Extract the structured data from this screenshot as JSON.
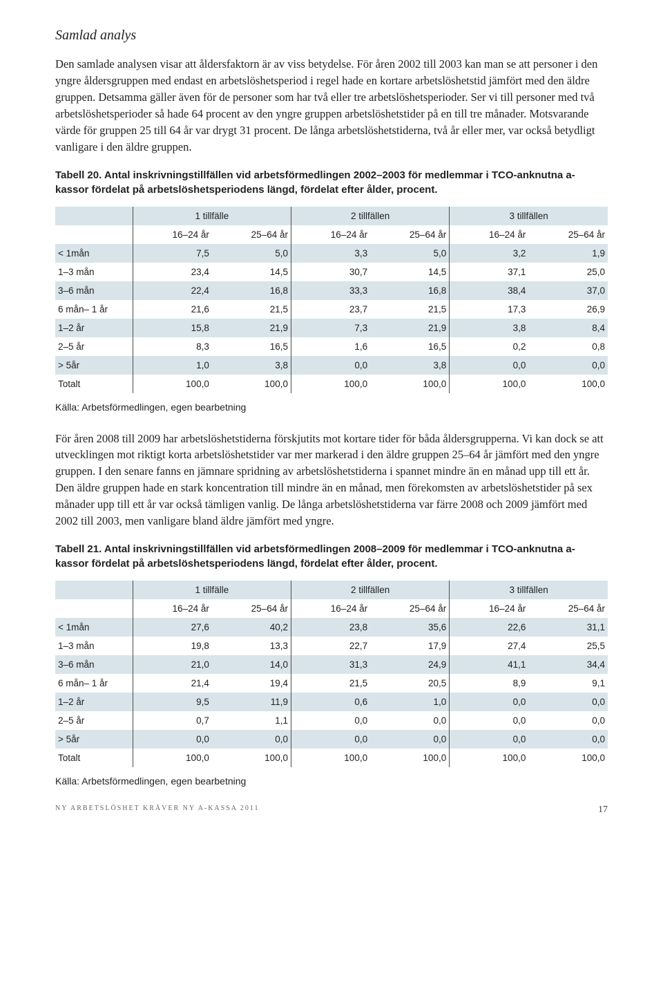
{
  "heading": "Samlad analys",
  "para1": "Den samlade analysen visar att åldersfaktorn är av viss betydelse. För åren 2002 till 2003 kan man se att personer i den yngre åldersgruppen med endast en arbetslöshetsperiod i regel hade en kortare arbetslöshetstid jämfört med den äldre gruppen. Detsamma gäller även för de personer som har två eller tre arbetslöshetsperioder. Ser vi till personer med två arbetslöshetsperioder så hade 64 procent av den yngre gruppen arbetslöshetstider på en till tre månader. Motsvarande värde för gruppen 25 till 64 år var drygt 31 procent. De långa arbetslöshetstiderna, två år eller mer, var också betydligt vanligare i den äldre gruppen.",
  "table20_caption": "Tabell 20. Antal inskrivningstillfällen vid arbetsförmedlingen 2002–2003 för medlemmar i TCO-anknutna a-kassor fördelat på arbetslöshetsperiodens längd, fördelat efter ålder, procent.",
  "group_headers": [
    "1 tillfälle",
    "2 tillfällen",
    "3 tillfällen"
  ],
  "sub_headers": [
    "16–24 år",
    "25–64 år",
    "16–24 år",
    "25–64 år",
    "16–24 år",
    "25–64 år"
  ],
  "table20_rows": [
    {
      "label": "< 1mån",
      "vals": [
        "7,5",
        "5,0",
        "3,3",
        "5,0",
        "3,2",
        "1,9"
      ],
      "shaded": true
    },
    {
      "label": "1–3 mån",
      "vals": [
        "23,4",
        "14,5",
        "30,7",
        "14,5",
        "37,1",
        "25,0"
      ],
      "shaded": false
    },
    {
      "label": "3–6 mån",
      "vals": [
        "22,4",
        "16,8",
        "33,3",
        "16,8",
        "38,4",
        "37,0"
      ],
      "shaded": true
    },
    {
      "label": "6 mån– 1 år",
      "vals": [
        "21,6",
        "21,5",
        "23,7",
        "21,5",
        "17,3",
        "26,9"
      ],
      "shaded": false
    },
    {
      "label": "1–2 år",
      "vals": [
        "15,8",
        "21,9",
        "7,3",
        "21,9",
        "3,8",
        "8,4"
      ],
      "shaded": true
    },
    {
      "label": "2–5 år",
      "vals": [
        "8,3",
        "16,5",
        "1,6",
        "16,5",
        "0,2",
        "0,8"
      ],
      "shaded": false
    },
    {
      "label": "> 5år",
      "vals": [
        "1,0",
        "3,8",
        "0,0",
        "3,8",
        "0,0",
        "0,0"
      ],
      "shaded": true
    },
    {
      "label": "Totalt",
      "vals": [
        "100,0",
        "100,0",
        "100,0",
        "100,0",
        "100,0",
        "100,0"
      ],
      "shaded": false
    }
  ],
  "source": "Källa: Arbetsförmedlingen, egen bearbetning",
  "para2": "För åren 2008 till 2009 har arbetslöshetstiderna förskjutits mot kortare tider för båda åldersgrupperna. Vi kan dock se att utvecklingen mot riktigt korta arbetslöshetstider var mer markerad i den äldre gruppen 25–64 år jämfört med den yngre gruppen. I den senare fanns en jämnare spridning av arbetslöshetstiderna i spannet mindre än en månad upp till ett år. Den äldre gruppen hade en stark koncentration till mindre än en månad, men förekomsten av arbetslöshetstider på sex månader upp till ett år var också tämligen vanlig. De långa arbetslöshetstiderna var färre 2008 och 2009 jämfört med 2002 till 2003, men vanligare bland äldre jämfört med yngre.",
  "table21_caption": "Tabell 21. Antal inskrivningstillfällen vid arbetsförmedlingen 2008–2009 för medlemmar i TCO-anknutna a-kassor fördelat på arbetslöshetsperiodens längd, fördelat efter ålder, procent.",
  "table21_rows": [
    {
      "label": "< 1mån",
      "vals": [
        "27,6",
        "40,2",
        "23,8",
        "35,6",
        "22,6",
        "31,1"
      ],
      "shaded": true
    },
    {
      "label": "1–3 mån",
      "vals": [
        "19,8",
        "13,3",
        "22,7",
        "17,9",
        "27,4",
        "25,5"
      ],
      "shaded": false
    },
    {
      "label": "3–6 mån",
      "vals": [
        "21,0",
        "14,0",
        "31,3",
        "24,9",
        "41,1",
        "34,4"
      ],
      "shaded": true
    },
    {
      "label": "6 mån– 1 år",
      "vals": [
        "21,4",
        "19,4",
        "21,5",
        "20,5",
        "8,9",
        "9,1"
      ],
      "shaded": false
    },
    {
      "label": "1–2 år",
      "vals": [
        "9,5",
        "11,9",
        "0,6",
        "1,0",
        "0,0",
        "0,0"
      ],
      "shaded": true
    },
    {
      "label": "2–5 år",
      "vals": [
        "0,7",
        "1,1",
        "0,0",
        "0,0",
        "0,0",
        "0,0"
      ],
      "shaded": false
    },
    {
      "label": "> 5år",
      "vals": [
        "0,0",
        "0,0",
        "0,0",
        "0,0",
        "0,0",
        "0,0"
      ],
      "shaded": true
    },
    {
      "label": "Totalt",
      "vals": [
        "100,0",
        "100,0",
        "100,0",
        "100,0",
        "100,0",
        "100,0"
      ],
      "shaded": false
    }
  ],
  "footer_text": "NY ARBETSLÖSHET KRÄVER NY A-KASSA 2011",
  "page_number": "17"
}
